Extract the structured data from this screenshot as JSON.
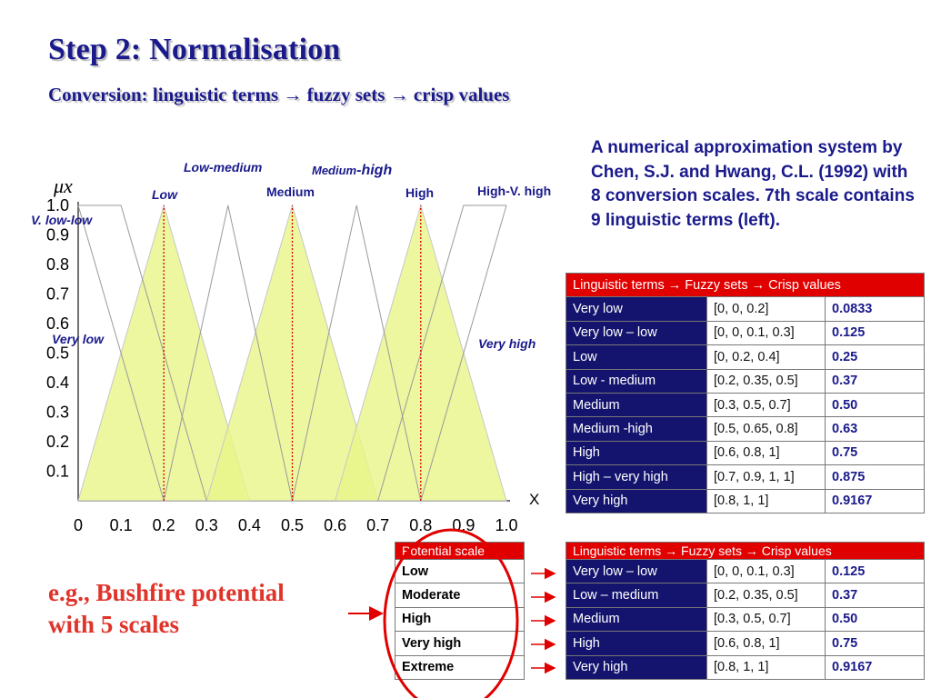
{
  "header": {
    "title": "Step 2: Normalisation",
    "subtitle": "Conversion: linguistic terms → fuzzy sets → crisp values"
  },
  "description": "A numerical approximation system by Chen, S.J. and Hwang, C.L. (1992) with 8 conversion scales. 7th scale contains 9 linguistic terms (left).",
  "chart_data": {
    "type": "line",
    "title": "",
    "ylabel": "μx",
    "xlabel": "X",
    "xlim": [
      0,
      1
    ],
    "ylim": [
      0,
      1
    ],
    "x_ticks": [
      "0",
      "0.1",
      "0.2",
      "0.3",
      "0.4",
      "0.5",
      "0.6",
      "0.7",
      "0.8",
      "0.9",
      "1.0"
    ],
    "y_ticks": [
      "0.1",
      "0.2",
      "0.3",
      "0.4",
      "0.5",
      "0.6",
      "0.7",
      "0.8",
      "0.9",
      "1.0"
    ],
    "filled_sets": [
      {
        "name": "Low",
        "points": [
          [
            0,
            0
          ],
          [
            0.2,
            1
          ],
          [
            0.4,
            0
          ]
        ]
      },
      {
        "name": "Medium",
        "points": [
          [
            0.3,
            0
          ],
          [
            0.5,
            1
          ],
          [
            0.7,
            0
          ]
        ]
      },
      {
        "name": "High",
        "points": [
          [
            0.6,
            0
          ],
          [
            0.8,
            1
          ],
          [
            1,
            0
          ]
        ]
      }
    ],
    "outline_sets": [
      {
        "name": "Very low",
        "points": [
          [
            0,
            1
          ],
          [
            0.2,
            0
          ]
        ]
      },
      {
        "name": "V. low-low",
        "points": [
          [
            0,
            1
          ],
          [
            0.1,
            1
          ],
          [
            0.3,
            0
          ]
        ]
      },
      {
        "name": "Low-medium",
        "points": [
          [
            0.2,
            0
          ],
          [
            0.35,
            1
          ],
          [
            0.5,
            0
          ]
        ]
      },
      {
        "name": "Medium-high",
        "points": [
          [
            0.5,
            0
          ],
          [
            0.65,
            1
          ],
          [
            0.8,
            0
          ]
        ]
      },
      {
        "name": "High-V. high",
        "points": [
          [
            0.7,
            0
          ],
          [
            0.9,
            1
          ],
          [
            1,
            1
          ]
        ]
      },
      {
        "name": "Very high",
        "points": [
          [
            0.8,
            0
          ],
          [
            1,
            1
          ]
        ]
      }
    ],
    "peak_lines": [
      0.2,
      0.5,
      0.8
    ],
    "labels": [
      {
        "text": "Low-medium",
        "italic": true
      },
      {
        "text_a": "Medium",
        "text_b": "-high"
      },
      {
        "text": "Low",
        "italic": true
      },
      {
        "text": "Medium",
        "italic": false
      },
      {
        "text": "High",
        "italic": false
      },
      {
        "text": "High-V. high",
        "italic": false
      },
      {
        "text": "V. low-low",
        "italic": true
      },
      {
        "text": "Very low",
        "italic": true
      },
      {
        "text": "Very high",
        "italic": true
      }
    ],
    "colors": {
      "fill": "#e8f58a",
      "outline": "#9a9a9a",
      "peak": "#e00000",
      "label": "#1a1a8c"
    }
  },
  "main_table": {
    "header": "Linguistic terms → Fuzzy sets → Crisp values",
    "rows": [
      {
        "term": "Very low",
        "set": "[0, 0, 0.2]",
        "crisp": "0.0833"
      },
      {
        "term": "Very low – low",
        "set": "[0, 0, 0.1, 0.3]",
        "crisp": "0.125"
      },
      {
        "term": "Low",
        "set": "[0, 0.2, 0.4]",
        "crisp": "0.25"
      },
      {
        "term": "Low - medium",
        "set": "[0.2, 0.35, 0.5]",
        "crisp": "0.37"
      },
      {
        "term": "Medium",
        "set": "[0.3, 0.5, 0.7]",
        "crisp": "0.50"
      },
      {
        "term": "Medium -high",
        "set": "[0.5, 0.65, 0.8]",
        "crisp": "0.63"
      },
      {
        "term": "High",
        "set": "[0.6, 0.8, 1]",
        "crisp": "0.75"
      },
      {
        "term": "High – very high",
        "set": "[0.7, 0.9, 1, 1]",
        "crisp": "0.875"
      },
      {
        "term": "Very high",
        "set": "[0.8, 1, 1]",
        "crisp": "0.9167"
      }
    ]
  },
  "example": {
    "line1": "e.g., Bushfire potential",
    "line2": "with 5 scales"
  },
  "scale_table": {
    "header": "Potential scale",
    "rows": [
      "Low",
      "Moderate",
      "High",
      "Very high",
      "Extreme"
    ]
  },
  "conversion_table": {
    "header": "Linguistic terms → Fuzzy sets → Crisp values",
    "rows": [
      {
        "term": "Very low – low",
        "set": "[0, 0, 0.1, 0.3]",
        "crisp": "0.125"
      },
      {
        "term": "Low – medium",
        "set": "[0.2, 0.35, 0.5]",
        "crisp": "0.37"
      },
      {
        "term": "Medium",
        "set": "[0.3, 0.5, 0.7]",
        "crisp": "0.50"
      },
      {
        "term": "High",
        "set": "[0.6, 0.8, 1]",
        "crisp": "0.75"
      },
      {
        "term": "Very high",
        "set": "[0.8, 1, 1]",
        "crisp": "0.9167"
      }
    ]
  },
  "colors": {
    "title": "#1a1a8c",
    "accent_red": "#e10000",
    "term_bg": "#14146e",
    "example": "#e0332a"
  }
}
